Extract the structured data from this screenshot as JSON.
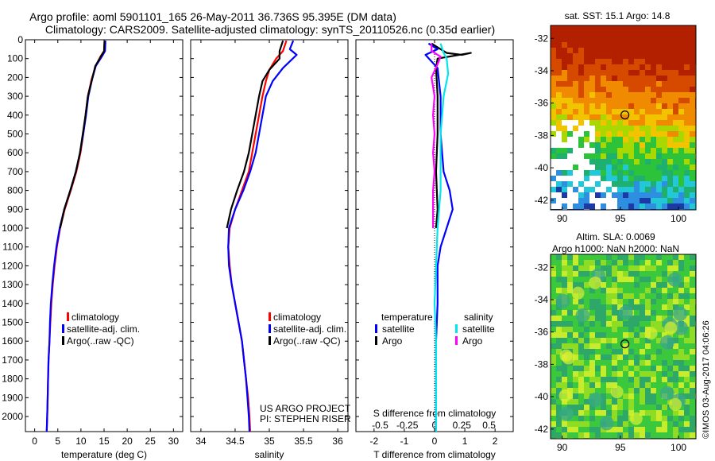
{
  "header": {
    "line1": "Argo profile: aoml 5901101_165 26-May-2011 36.736S 95.395E (DM data)",
    "line2": "Climatology: CARS2009. Satellite-adjusted climatology: synTS_20110526.nc (0.35d earlier)"
  },
  "colors": {
    "climatology": "#ff0000",
    "satellite": "#0000ff",
    "argo": "#000000",
    "sat_salinity": "#00e5ee",
    "argo_salinity": "#ff00ff"
  },
  "chart_data": [
    {
      "type": "line",
      "id": "temperature",
      "xlabel": "temperature (deg C)",
      "ylabel": "",
      "xlim": [
        -2,
        32
      ],
      "ylim": [
        2080,
        0
      ],
      "xticks": [
        0,
        5,
        10,
        15,
        20,
        25,
        30
      ],
      "yticks": [
        0,
        100,
        200,
        300,
        400,
        500,
        600,
        700,
        800,
        900,
        1000,
        1100,
        1200,
        1300,
        1400,
        1500,
        1600,
        1700,
        1800,
        1900,
        2000
      ],
      "legend": {
        "placement": "bottom-center",
        "entries": [
          "climatology",
          "satellite-adj. clim.",
          "Argo(..raw -QC)"
        ]
      },
      "series": [
        {
          "name": "climatology",
          "color": "#ff0000",
          "points": [
            [
              15.1,
              5
            ],
            [
              15.0,
              60
            ],
            [
              14.2,
              90
            ],
            [
              13.2,
              140
            ],
            [
              12.3,
              210
            ],
            [
              11.5,
              300
            ],
            [
              11.0,
              400
            ],
            [
              10.5,
              500
            ],
            [
              9.9,
              600
            ],
            [
              9.0,
              700
            ],
            [
              7.8,
              800
            ],
            [
              6.5,
              900
            ],
            [
              5.5,
              1000
            ],
            [
              4.8,
              1100
            ],
            [
              4.3,
              1200
            ],
            [
              3.9,
              1300
            ],
            [
              3.6,
              1400
            ],
            [
              3.4,
              1500
            ],
            [
              3.2,
              1600
            ],
            [
              3.0,
              1700
            ],
            [
              2.9,
              1800
            ],
            [
              2.8,
              1900
            ],
            [
              2.7,
              2000
            ],
            [
              2.6,
              2080
            ]
          ]
        },
        {
          "name": "satellite-adj. clim.",
          "color": "#0000ff",
          "points": [
            [
              15.3,
              5
            ],
            [
              15.2,
              60
            ],
            [
              14.5,
              90
            ],
            [
              13.2,
              140
            ],
            [
              12.4,
              210
            ],
            [
              11.6,
              300
            ],
            [
              11.1,
              400
            ],
            [
              10.5,
              500
            ],
            [
              9.8,
              600
            ],
            [
              8.9,
              700
            ],
            [
              7.7,
              800
            ],
            [
              6.4,
              900
            ],
            [
              5.4,
              1000
            ],
            [
              4.7,
              1100
            ],
            [
              4.2,
              1200
            ],
            [
              3.8,
              1300
            ],
            [
              3.5,
              1400
            ],
            [
              3.3,
              1500
            ],
            [
              3.2,
              1600
            ],
            [
              3.0,
              1700
            ],
            [
              2.9,
              1800
            ],
            [
              2.8,
              1900
            ],
            [
              2.7,
              2000
            ],
            [
              2.6,
              2080
            ]
          ]
        },
        {
          "name": "Argo(..raw -QC)",
          "color": "#000000",
          "points": [
            [
              15.1,
              5
            ],
            [
              15.0,
              60
            ],
            [
              14.3,
              90
            ],
            [
              13.1,
              140
            ],
            [
              12.4,
              210
            ],
            [
              11.5,
              300
            ],
            [
              11.0,
              400
            ],
            [
              10.4,
              500
            ],
            [
              9.8,
              600
            ],
            [
              8.9,
              700
            ],
            [
              7.7,
              800
            ],
            [
              6.4,
              900
            ],
            [
              5.5,
              1000
            ]
          ]
        }
      ]
    },
    {
      "type": "line",
      "id": "salinity",
      "xlabel": "salinity",
      "ylabel": "",
      "xlim": [
        33.85,
        36.15
      ],
      "ylim": [
        2080,
        0
      ],
      "xticks": [
        34,
        34.5,
        35,
        35.5,
        36
      ],
      "legend": {
        "placement": "bottom-center",
        "entries": [
          "climatology",
          "satellite-adj. clim.",
          "Argo(..raw -QC)"
        ]
      },
      "annotation": [
        "US ARGO PROJECT",
        "PI: STEPHEN RISER"
      ],
      "series": [
        {
          "name": "climatology",
          "color": "#ff0000",
          "points": [
            [
              35.25,
              5
            ],
            [
              35.2,
              60
            ],
            [
              35.1,
              100
            ],
            [
              35.0,
              160
            ],
            [
              34.95,
              220
            ],
            [
              34.9,
              300
            ],
            [
              34.85,
              400
            ],
            [
              34.8,
              500
            ],
            [
              34.75,
              600
            ],
            [
              34.7,
              700
            ],
            [
              34.6,
              800
            ],
            [
              34.5,
              900
            ],
            [
              34.42,
              1000
            ],
            [
              34.4,
              1100
            ],
            [
              34.42,
              1200
            ],
            [
              34.45,
              1300
            ],
            [
              34.5,
              1400
            ],
            [
              34.55,
              1500
            ],
            [
              34.6,
              1600
            ],
            [
              34.63,
              1700
            ],
            [
              34.66,
              1800
            ],
            [
              34.69,
              1900
            ],
            [
              34.71,
              2000
            ],
            [
              34.72,
              2080
            ]
          ]
        },
        {
          "name": "satellite-adj. clim.",
          "color": "#0000ff",
          "points": [
            [
              35.35,
              5
            ],
            [
              35.3,
              50
            ],
            [
              35.4,
              80
            ],
            [
              35.2,
              150
            ],
            [
              35.05,
              220
            ],
            [
              34.95,
              300
            ],
            [
              34.9,
              400
            ],
            [
              34.85,
              500
            ],
            [
              34.8,
              600
            ],
            [
              34.72,
              700
            ],
            [
              34.62,
              800
            ],
            [
              34.5,
              900
            ],
            [
              34.41,
              1000
            ],
            [
              34.4,
              1100
            ],
            [
              34.41,
              1200
            ],
            [
              34.45,
              1300
            ],
            [
              34.5,
              1400
            ],
            [
              34.55,
              1500
            ],
            [
              34.6,
              1600
            ],
            [
              34.63,
              1700
            ],
            [
              34.66,
              1800
            ],
            [
              34.68,
              1900
            ],
            [
              34.7,
              2000
            ],
            [
              34.71,
              2080
            ]
          ]
        },
        {
          "name": "Argo(..raw -QC)",
          "color": "#000000",
          "points": [
            [
              35.2,
              5
            ],
            [
              35.15,
              60
            ],
            [
              35.15,
              100
            ],
            [
              35.0,
              160
            ],
            [
              34.9,
              220
            ],
            [
              34.85,
              300
            ],
            [
              34.8,
              400
            ],
            [
              34.75,
              500
            ],
            [
              34.7,
              600
            ],
            [
              34.63,
              700
            ],
            [
              34.53,
              800
            ],
            [
              34.44,
              900
            ],
            [
              34.38,
              1000
            ]
          ]
        }
      ]
    },
    {
      "type": "line",
      "id": "difference",
      "xlabel": "T difference from climatology",
      "ylabel": "",
      "top_xlabel": "S difference from climatology",
      "xlim": [
        -2.6,
        2.6
      ],
      "ylim": [
        2080,
        0
      ],
      "xticks": [
        -2,
        -1,
        0,
        1,
        2
      ],
      "top_xticks": [
        "-0.5",
        "-0.25",
        "0",
        "0.25",
        "0.5"
      ],
      "top_xtick_positions": [
        -1.8,
        -0.9,
        0,
        0.9,
        1.8
      ],
      "legend": {
        "placement": "bottom-center",
        "group_temperature": "temperature",
        "group_salinity": "salinity",
        "entries": [
          "satellite",
          "Argo",
          "satellite",
          "Argo"
        ]
      },
      "series": [
        {
          "name": "satellite",
          "group": "temperature",
          "color": "#0000ff",
          "points": [
            [
              -0.2,
              20
            ],
            [
              0.1,
              50
            ],
            [
              -0.3,
              80
            ],
            [
              0.1,
              150
            ],
            [
              0.2,
              300
            ],
            [
              0.2,
              500
            ],
            [
              0.3,
              700
            ],
            [
              0.5,
              800
            ],
            [
              0.6,
              900
            ],
            [
              0.4,
              1000
            ],
            [
              0.2,
              1100
            ],
            [
              0.1,
              1200
            ],
            [
              0.1,
              1400
            ],
            [
              0.05,
              1600
            ],
            [
              0.05,
              1800
            ],
            [
              0.05,
              2000
            ],
            [
              0.05,
              2080
            ]
          ]
        },
        {
          "name": "Argo",
          "group": "temperature",
          "color": "#000000",
          "points": [
            [
              -0.1,
              20
            ],
            [
              0.1,
              40
            ],
            [
              0.4,
              70
            ],
            [
              0.9,
              80
            ],
            [
              1.2,
              70
            ],
            [
              0.1,
              100
            ],
            [
              0.05,
              150
            ],
            [
              0.1,
              300
            ],
            [
              0.1,
              500
            ],
            [
              0.05,
              700
            ],
            [
              0.1,
              900
            ],
            [
              0.05,
              1000
            ]
          ]
        },
        {
          "name": "satellite",
          "group": "salinity",
          "color": "#00e5ee",
          "points": [
            [
              0.2,
              20
            ],
            [
              0.3,
              70
            ],
            [
              0.4,
              100
            ],
            [
              0.45,
              180
            ],
            [
              0.3,
              300
            ],
            [
              0.2,
              500
            ],
            [
              0.2,
              800
            ],
            [
              0.1,
              1000
            ],
            [
              0.05,
              1200
            ],
            [
              0.0,
              1400
            ],
            [
              0.05,
              1600
            ],
            [
              0.05,
              1800
            ],
            [
              0.05,
              2000
            ],
            [
              0.05,
              2080
            ]
          ]
        },
        {
          "name": "Argo",
          "group": "salinity",
          "color": "#ff00ff",
          "points": [
            [
              -0.1,
              20
            ],
            [
              -0.1,
              60
            ],
            [
              0.2,
              90
            ],
            [
              0.1,
              130
            ],
            [
              -0.1,
              200
            ],
            [
              0.0,
              300
            ],
            [
              -0.05,
              400
            ],
            [
              0.0,
              500
            ],
            [
              -0.05,
              600
            ],
            [
              0.0,
              700
            ],
            [
              -0.05,
              800
            ],
            [
              -0.05,
              900
            ],
            [
              -0.05,
              1000
            ]
          ]
        }
      ]
    },
    {
      "type": "heatmap",
      "id": "sst_map",
      "title": "sat. SST: 15.1 Argo: 14.8",
      "xlim": [
        89,
        101.5
      ],
      "ylim": [
        -42.6,
        -31.2
      ],
      "xticks": [
        90,
        95,
        100
      ],
      "yticks": [
        -32,
        -34,
        -36,
        -38,
        -40,
        -42
      ],
      "marker": [
        95.395,
        -36.736
      ]
    },
    {
      "type": "heatmap",
      "id": "sla_map",
      "title": [
        "Altim. SLA: 0.0069",
        "Argo h1000: NaN h2000: NaN"
      ],
      "xlim": [
        89,
        101.5
      ],
      "ylim": [
        -42.6,
        -31.2
      ],
      "xticks": [
        90,
        95,
        100
      ],
      "yticks": [
        -32,
        -34,
        -36,
        -38,
        -40,
        -42
      ],
      "marker": [
        95.395,
        -36.736
      ]
    }
  ],
  "footer": {
    "credit": "©IMOS 03-Aug-2017 04:06:26"
  }
}
